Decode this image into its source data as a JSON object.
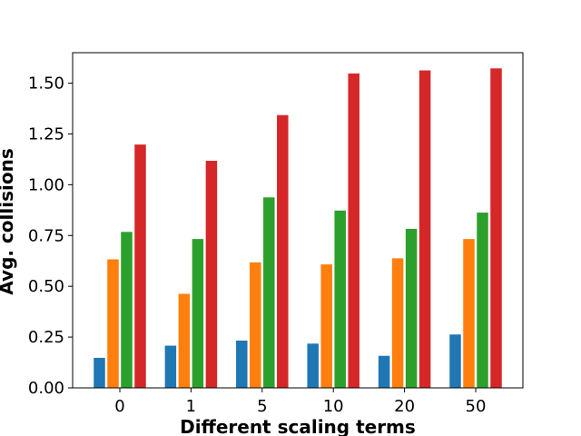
{
  "chart_data": {
    "type": "bar",
    "xlabel": "Different scaling terms",
    "ylabel": "Avg. collisions",
    "categories": [
      "0",
      "1",
      "5",
      "10",
      "20",
      "50"
    ],
    "ylim": [
      0,
      1.65
    ],
    "yticks": [
      "0.00",
      "0.25",
      "0.50",
      "0.75",
      "1.00",
      "1.25",
      "1.50"
    ],
    "grid": false,
    "legend": "none",
    "series": [
      {
        "color": "#1f77b4",
        "values": [
          0.15,
          0.21,
          0.235,
          0.22,
          0.16,
          0.265
        ]
      },
      {
        "color": "#ff7f0e",
        "values": [
          0.635,
          0.465,
          0.62,
          0.61,
          0.64,
          0.735
        ]
      },
      {
        "color": "#2ca02c",
        "values": [
          0.77,
          0.735,
          0.94,
          0.875,
          0.785,
          0.865
        ]
      },
      {
        "color": "#d62728",
        "values": [
          1.2,
          1.12,
          1.345,
          1.55,
          1.565,
          1.575
        ]
      }
    ]
  }
}
